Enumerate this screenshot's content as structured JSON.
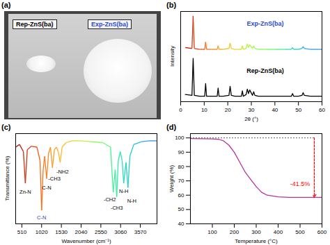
{
  "photo": {
    "title": "(a)",
    "labels": [
      "Rep-ZnS(ba)",
      "Exp-ZnS(ba)"
    ]
  },
  "chart_data": [
    {
      "type": "line",
      "title": "(b)",
      "xlabel": "2θ (°)",
      "ylabel": "Intensity",
      "x": [
        2,
        4.8,
        5.3,
        5.8,
        8,
        10.2,
        10.6,
        11,
        13,
        15.5,
        15.9,
        16.3,
        18,
        20.5,
        21,
        21.5,
        23,
        25.8,
        26.2,
        26.6,
        27.8,
        28.3,
        28.8,
        29.3,
        30.5,
        31,
        31.5,
        33,
        36,
        40,
        44,
        47,
        47.5,
        48,
        50,
        51.5,
        52,
        52.5,
        55,
        60
      ],
      "xlim": [
        0,
        60
      ],
      "xticks": [
        0,
        10,
        20,
        30,
        40,
        50,
        60
      ],
      "ylim": [
        0,
        100
      ],
      "tick_labels": "x",
      "series": [
        {
          "name": "Exp-ZnS(ba)",
          "color": "rainbow",
          "values": [
            60,
            59,
            95,
            59,
            58,
            58,
            66,
            58,
            58,
            58,
            62,
            58,
            58,
            59,
            65,
            59,
            58,
            58,
            62,
            58,
            59,
            64,
            60,
            63,
            59,
            62,
            59,
            58,
            58,
            58,
            58,
            58,
            60,
            58,
            58,
            59,
            61,
            59,
            58,
            58
          ]
        },
        {
          "name": "Rep-ZnS(ba)",
          "color": "#000000",
          "values": [
            8,
            7,
            48,
            7,
            6,
            6,
            20,
            6,
            6,
            6,
            15,
            6,
            6,
            7,
            17,
            7,
            6,
            6,
            12,
            6,
            8,
            14,
            9,
            13,
            7,
            11,
            7,
            6,
            6,
            6,
            6,
            6,
            9,
            6,
            6,
            7,
            10,
            7,
            6,
            6
          ]
        }
      ]
    },
    {
      "type": "line",
      "title": "(c)",
      "xlabel": "Wavenumber (cm⁻¹)",
      "ylabel": "Transmittance (%)",
      "x": [
        350,
        450,
        550,
        600,
        650,
        750,
        900,
        980,
        1020,
        1060,
        1100,
        1150,
        1200,
        1250,
        1300,
        1350,
        1400,
        1450,
        1500,
        1550,
        1650,
        1800,
        2000,
        2300,
        2600,
        2800,
        2870,
        2920,
        2960,
        3000,
        3050,
        3100,
        3140,
        3200,
        3250,
        3300,
        3400,
        3600,
        3800,
        4000
      ],
      "values": [
        85,
        88,
        80,
        45,
        82,
        86,
        85,
        70,
        15,
        60,
        75,
        50,
        78,
        85,
        62,
        82,
        85,
        80,
        68,
        85,
        90,
        92,
        92,
        91,
        90,
        85,
        35,
        60,
        30,
        70,
        80,
        70,
        45,
        68,
        40,
        75,
        88,
        91,
        92,
        92
      ],
      "color": "rainbow",
      "xlim": [
        350,
        4000
      ],
      "xticks": [
        510,
        1020,
        1530,
        2040,
        2550,
        3060,
        3570
      ],
      "ylim": [
        0,
        100
      ],
      "tick_labels": "x",
      "annotations": [
        {
          "text": "Zn-N",
          "x": 600,
          "y": 35
        },
        {
          "text": "C-N",
          "x": 1020,
          "y": 7,
          "color": "#1f3fbf"
        },
        {
          "text": "C-N",
          "x": 1150,
          "y": 40
        },
        {
          "text": "-CH3",
          "x": 1350,
          "y": 50
        },
        {
          "text": "-NH2",
          "x": 1560,
          "y": 58
        },
        {
          "text": "-CH2",
          "x": 2780,
          "y": 27
        },
        {
          "text": "-CH3",
          "x": 2960,
          "y": 18
        },
        {
          "text": "N-H",
          "x": 3140,
          "y": 36
        },
        {
          "text": "N-H",
          "x": 3350,
          "y": 25
        }
      ]
    },
    {
      "type": "line",
      "title": "(d)",
      "xlabel": "Temperature (°C)",
      "ylabel": "Weight (%)",
      "x": [
        0,
        50,
        100,
        130,
        150,
        175,
        200,
        225,
        250,
        275,
        300,
        325,
        350,
        400,
        450,
        500,
        550,
        600
      ],
      "values": [
        99.5,
        99.4,
        99.3,
        99,
        98,
        95,
        90,
        83,
        76,
        71,
        66,
        62,
        60,
        58.8,
        58.5,
        58.5,
        58.5,
        58.5
      ],
      "color": "#b8329c",
      "xlim": [
        0,
        600
      ],
      "xticks": [
        100,
        200,
        300,
        400,
        500,
        600
      ],
      "ylim": [
        40,
        103
      ],
      "yticks": [
        40,
        50,
        60,
        70,
        80,
        90,
        100
      ],
      "annotations": [
        {
          "text": "-41.5%",
          "x": 545,
          "y": 68,
          "color": "#ff0000",
          "arrow": {
            "x": 565,
            "y1": 100,
            "y2": 58.5
          }
        }
      ]
    }
  ]
}
